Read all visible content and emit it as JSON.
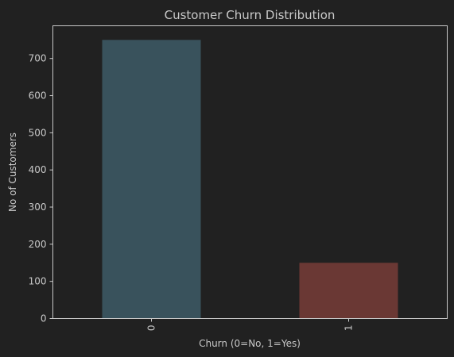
{
  "chart_data": {
    "type": "bar",
    "title": "Customer Churn Distribution",
    "xlabel": "Churn (0=No, 1=Yes)",
    "ylabel": "No of Customers",
    "categories": [
      "0",
      "1"
    ],
    "values": [
      750,
      150
    ],
    "ylim": [
      0,
      788
    ],
    "yticks": [
      0,
      100,
      200,
      300,
      400,
      500,
      600,
      700
    ],
    "grid": false,
    "legend": "none",
    "bar_colors": [
      "#39525c",
      "#6a3834"
    ],
    "background": "#212121",
    "text_color": "#c8c8c8",
    "axis_color": "#c8c8c8"
  }
}
